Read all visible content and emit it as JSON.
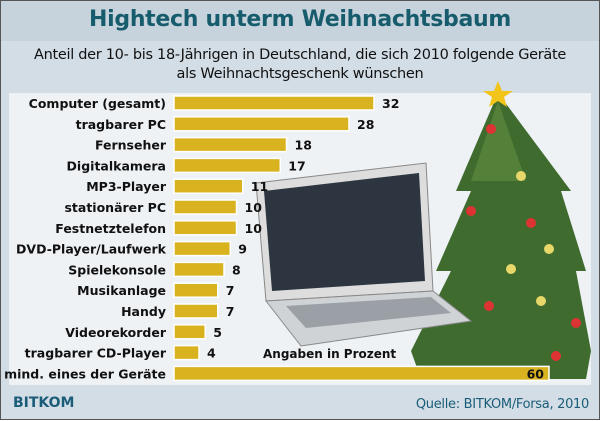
{
  "chart_data": {
    "type": "bar",
    "orientation": "horizontal",
    "title": "Hightech unterm Weihnachtsbaum",
    "subtitle": [
      "Anteil der 10- bis 18-Jährigen in Deutschland, die sich 2010 folgende Geräte",
      "als Weihnachtsgeschenk wünschen"
    ],
    "categories": [
      "Computer (gesamt)",
      "tragbarer PC",
      "Fernseher",
      "Digitalkamera",
      "MP3-Player",
      "stationärer PC",
      "Festnetztelefon",
      "DVD-Player/Laufwerk",
      "Spielekonsole",
      "Musikanlage",
      "Handy",
      "Videorekorder",
      "tragbarer CD-Player",
      "mind. eines der Geräte"
    ],
    "values": [
      32,
      28,
      18,
      17,
      11,
      10,
      10,
      9,
      8,
      7,
      7,
      5,
      4,
      60
    ],
    "unit_note": "Angaben in Prozent",
    "bar_color": "#d9b21f",
    "xlim": [
      0,
      60
    ],
    "grid": false
  },
  "footer": {
    "logo": "BITKOM",
    "source": "Quelle: BITKOM/Forsa, 2010"
  }
}
